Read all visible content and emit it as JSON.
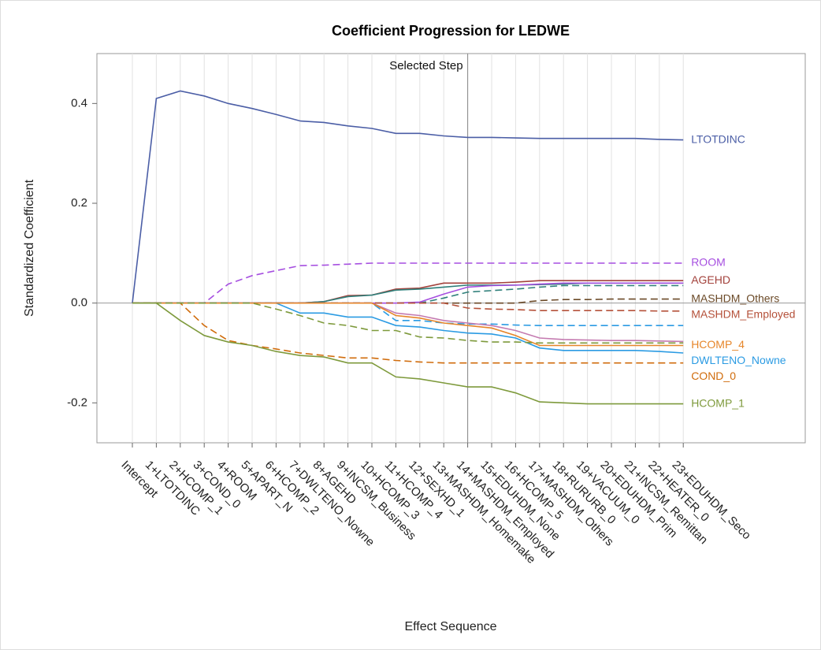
{
  "chart_data": {
    "type": "line",
    "title": "Coefficient Progression for LEDWE",
    "x_label": "Effect Sequence",
    "y_label": "Standardized Coefficient",
    "selected_step": {
      "label": "Selected Step",
      "category": "14+MASHDM_Employed"
    },
    "categories": [
      "Intercept",
      "1+LTOTDINC",
      "2+HCOMP_1",
      "3+COND_0",
      "4+ROOM",
      "5+APART_N",
      "6+HCOMP_2",
      "7+DWLTENO_Nowne",
      "8+AGEHD",
      "9+INCSM_Business",
      "10+HCOMP_3",
      "11+HCOMP_4",
      "12+SEXHD_1",
      "13+MASHDM_Homemake",
      "14+MASHDM_Employed",
      "15+EDUHDM_None",
      "16+HCOMP_5",
      "17+MASHDM_Others",
      "18+RURURB_0",
      "19+VACUUM_0",
      "20+EDUHDM_Prim",
      "21+INCSM_Remittan",
      "22+HEATER_0",
      "23+EDUHDM_Seco"
    ],
    "ylim": [
      -0.28,
      0.5
    ],
    "yticks": [
      -0.2,
      {
        "value": 0,
        "label": "0.0"
      },
      0.2,
      0.4
    ],
    "grid": true,
    "series": [
      {
        "name": "LTOTDINC",
        "color": "#4b5ea6",
        "style": "solid",
        "values": [
          0,
          0.41,
          0.425,
          0.415,
          0.4,
          0.39,
          0.378,
          0.365,
          0.362,
          0.355,
          0.35,
          0.34,
          0.34,
          0.335,
          0.332,
          0.332,
          0.331,
          0.33,
          0.33,
          0.33,
          0.33,
          0.33,
          0.328,
          0.327
        ]
      },
      {
        "name": "ROOM",
        "color": "#a64fe0",
        "style": "dashed",
        "values": [
          0,
          0,
          0,
          0,
          0.038,
          0.055,
          0.065,
          0.075,
          0.076,
          0.078,
          0.08,
          0.08,
          0.08,
          0.08,
          0.08,
          0.08,
          0.08,
          0.08,
          0.08,
          0.08,
          0.08,
          0.08,
          0.08,
          0.08
        ]
      },
      {
        "name": "AGEHD",
        "color": "#a3423c",
        "style": "solid",
        "values": [
          0,
          0,
          0,
          0,
          0,
          0,
          0,
          0,
          0.003,
          0.015,
          0.016,
          0.028,
          0.03,
          0.04,
          0.04,
          0.04,
          0.042,
          0.045,
          0.045,
          0.045,
          0.045,
          0.045,
          0.045,
          0.045
        ]
      },
      {
        "color": "#2f7f7a",
        "style": "solid",
        "values": [
          0,
          0,
          0,
          0,
          0,
          0,
          0,
          0,
          0.003,
          0.013,
          0.016,
          0.026,
          0.028,
          0.032,
          0.036,
          0.036,
          0.036,
          0.037,
          0.038,
          0.04,
          0.04,
          0.04,
          0.04,
          0.04
        ]
      },
      {
        "color": "#2f7f7a",
        "style": "dashed",
        "values": [
          0,
          0,
          0,
          0,
          0,
          0,
          0,
          0,
          0,
          0,
          0,
          0,
          0,
          0.01,
          0.022,
          0.025,
          0.028,
          0.032,
          0.035,
          0.035,
          0.035,
          0.035,
          0.035,
          0.035
        ]
      },
      {
        "color": "#a64fe0",
        "style": "solid",
        "values": [
          0,
          0,
          0,
          0,
          0,
          0,
          0,
          0,
          0,
          0,
          0,
          0,
          0.002,
          0.018,
          0.032,
          0.035,
          0.036,
          0.038,
          0.04,
          0.04,
          0.04,
          0.04,
          0.04,
          0.04
        ]
      },
      {
        "name": "MASHDM_Others",
        "color": "#6b4a28",
        "style": "dashed",
        "values": [
          0,
          0,
          0,
          0,
          0,
          0,
          0,
          0,
          0,
          0,
          0,
          0,
          0,
          0,
          0,
          0,
          0,
          0.005,
          0.007,
          0.007,
          0.008,
          0.008,
          0.008,
          0.008
        ]
      },
      {
        "name": "MASHDM_Employed",
        "color": "#b5513a",
        "style": "dashed",
        "values": [
          0,
          0,
          0,
          0,
          0,
          0,
          0,
          0,
          0,
          0,
          0,
          0,
          0,
          0,
          -0.01,
          -0.012,
          -0.013,
          -0.015,
          -0.015,
          -0.015,
          -0.015,
          -0.015,
          -0.016,
          -0.016
        ]
      },
      {
        "name": "DWLTENO_Nowne",
        "color": "#2b9be3",
        "style": "solid",
        "values": [
          0,
          0,
          0,
          0,
          0,
          0,
          0,
          -0.02,
          -0.02,
          -0.028,
          -0.028,
          -0.045,
          -0.048,
          -0.055,
          -0.06,
          -0.062,
          -0.07,
          -0.09,
          -0.095,
          -0.095,
          -0.095,
          -0.095,
          -0.097,
          -0.1
        ]
      },
      {
        "color": "#2b9be3",
        "style": "dashed",
        "values": [
          0,
          0,
          0,
          0,
          0,
          0,
          0,
          0,
          0,
          0,
          0,
          -0.035,
          -0.035,
          -0.04,
          -0.042,
          -0.042,
          -0.044,
          -0.045,
          -0.045,
          -0.045,
          -0.045,
          -0.045,
          -0.045,
          -0.045
        ]
      },
      {
        "color": "#c47ab0",
        "style": "solid",
        "values": [
          0,
          0,
          0,
          0,
          0,
          0,
          0,
          0,
          0,
          0,
          0,
          -0.02,
          -0.025,
          -0.035,
          -0.04,
          -0.045,
          -0.055,
          -0.07,
          -0.073,
          -0.074,
          -0.075,
          -0.075,
          -0.076,
          -0.077
        ]
      },
      {
        "name": "HCOMP_4",
        "color": "#e6862a",
        "style": "solid",
        "values": [
          0,
          0,
          0,
          0,
          0,
          0,
          0,
          0,
          0,
          0,
          0,
          -0.025,
          -0.03,
          -0.04,
          -0.045,
          -0.05,
          -0.065,
          -0.085,
          -0.085,
          -0.085,
          -0.085,
          -0.085,
          -0.085,
          -0.085
        ]
      },
      {
        "name": "COND_0",
        "color": "#d06c0c",
        "style": "dashed",
        "values": [
          0,
          0,
          0,
          -0.045,
          -0.075,
          -0.085,
          -0.092,
          -0.1,
          -0.105,
          -0.11,
          -0.11,
          -0.115,
          -0.118,
          -0.12,
          -0.12,
          -0.12,
          -0.12,
          -0.12,
          -0.12,
          -0.12,
          -0.12,
          -0.12,
          -0.12,
          -0.12
        ]
      },
      {
        "color": "#7e9a3c",
        "style": "dashed",
        "values": [
          0,
          0,
          0,
          0,
          0,
          0,
          -0.012,
          -0.025,
          -0.04,
          -0.045,
          -0.055,
          -0.055,
          -0.068,
          -0.07,
          -0.075,
          -0.078,
          -0.078,
          -0.08,
          -0.08,
          -0.08,
          -0.08,
          -0.08,
          -0.08,
          -0.08
        ]
      },
      {
        "name": "HCOMP_1",
        "color": "#7e9a3c",
        "style": "solid",
        "values": [
          0,
          0,
          -0.035,
          -0.065,
          -0.078,
          -0.085,
          -0.097,
          -0.105,
          -0.108,
          -0.12,
          -0.12,
          -0.148,
          -0.152,
          -0.16,
          -0.168,
          -0.168,
          -0.18,
          -0.198,
          -0.2,
          -0.202,
          -0.202,
          -0.202,
          -0.202,
          -0.202
        ]
      }
    ]
  }
}
